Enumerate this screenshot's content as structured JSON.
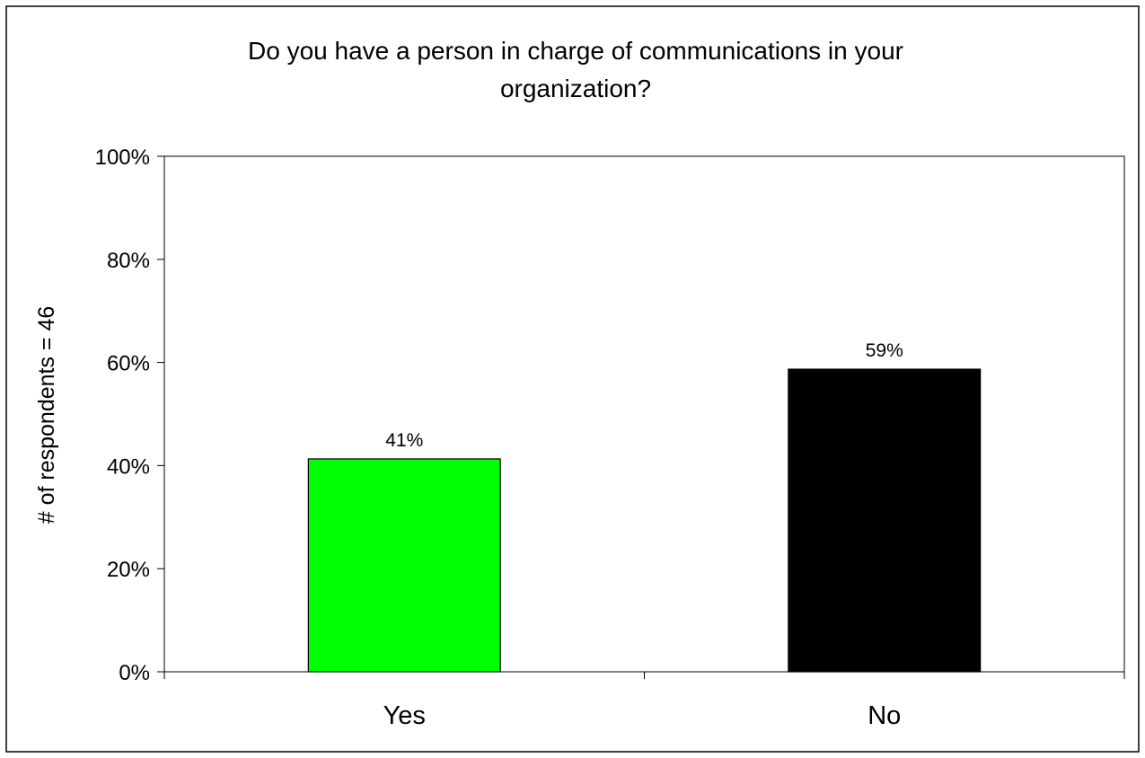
{
  "chart_data": {
    "type": "bar",
    "title": [
      "Do you have a person in charge of communications in your",
      "organization?"
    ],
    "ylabel": "# of respondents = 46",
    "xlabel": "",
    "categories": [
      "Yes",
      "No"
    ],
    "values": [
      41.3,
      58.7
    ],
    "data_labels": [
      "41%",
      "59%"
    ],
    "bar_colors": [
      "#00ff00",
      "#000000"
    ],
    "ylim": [
      0,
      100
    ],
    "yticks": [
      0,
      20,
      40,
      60,
      80,
      100
    ],
    "ytick_labels": [
      "0%",
      "20%",
      "40%",
      "60%",
      "80%",
      "100%"
    ],
    "grid": false,
    "legend": "none"
  }
}
